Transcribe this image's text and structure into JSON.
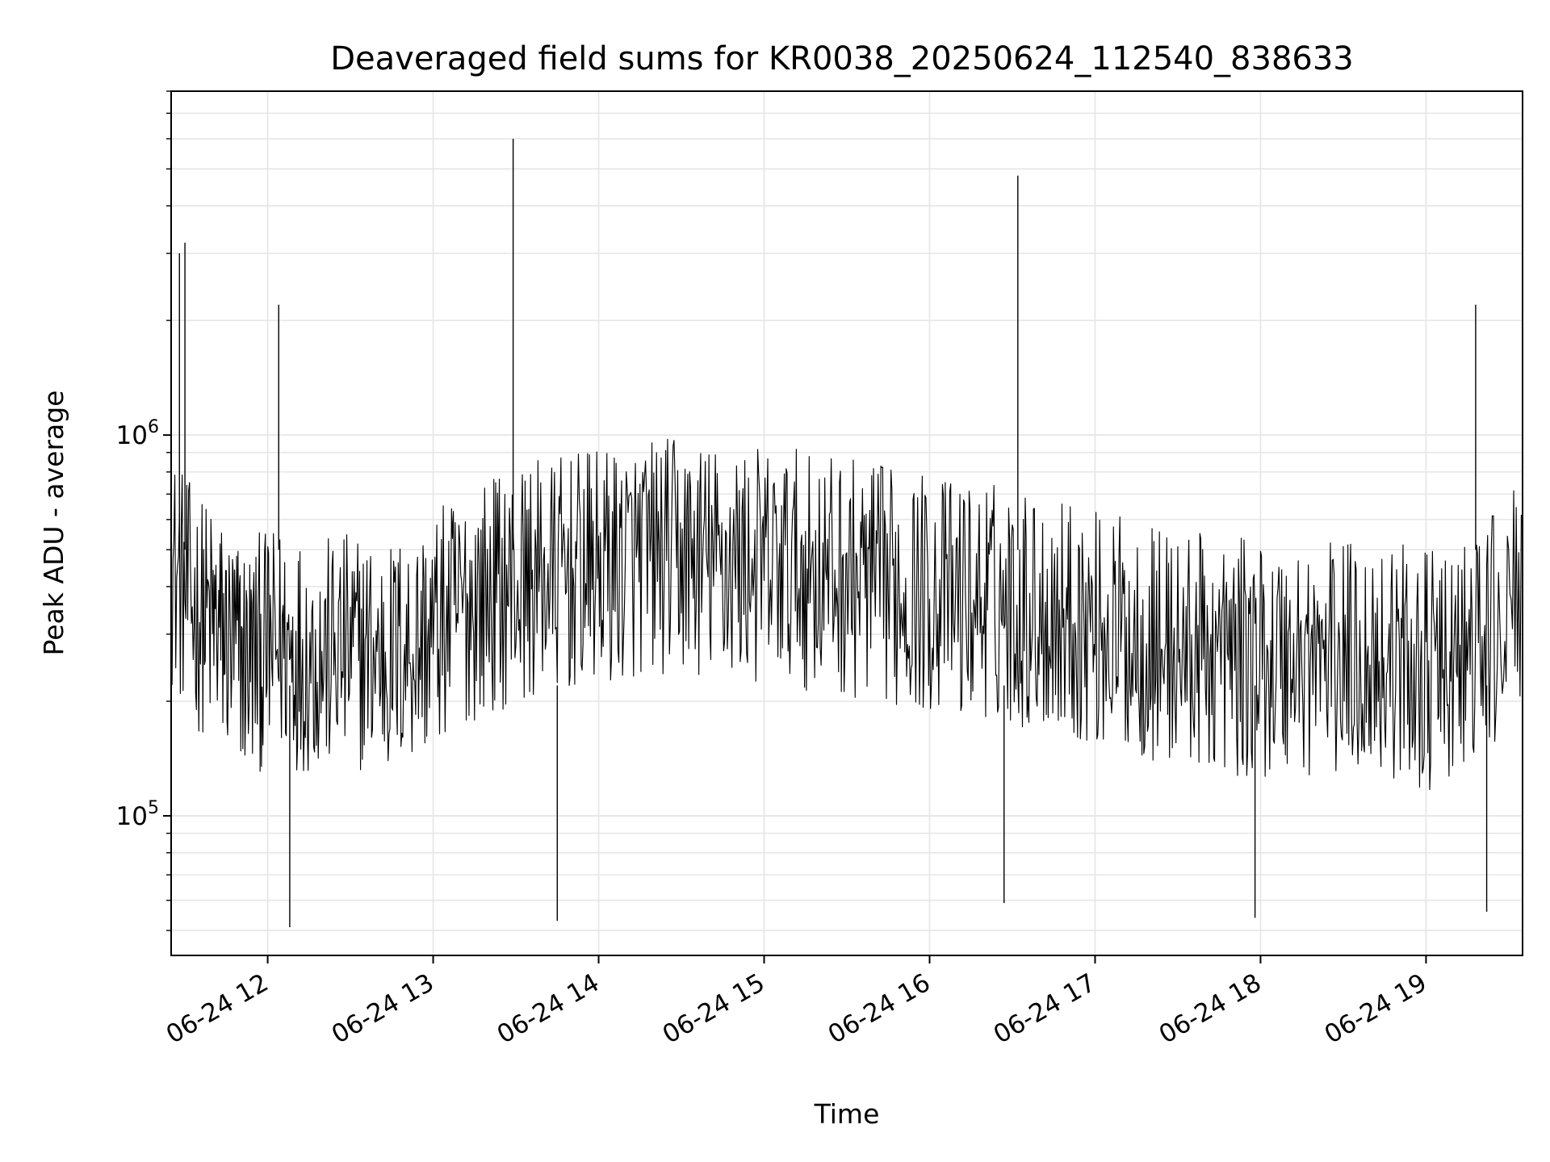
{
  "chart_data": {
    "type": "line",
    "title": "Deaveraged field sums for KR0038_20250624_112540_838633",
    "xlabel": "Time",
    "ylabel": "Peak ADU - average",
    "y_scale": "log",
    "ylim": [
      43000,
      8000000
    ],
    "xlim": [
      "2025-06-24 11:25",
      "2025-06-24 19:35"
    ],
    "grid": true,
    "grid_color": "#e6e6e6",
    "line_color": "#000000",
    "x_ticks": [
      {
        "time": "2025-06-24 12:00",
        "label": "06-24 12"
      },
      {
        "time": "2025-06-24 13:00",
        "label": "06-24 13"
      },
      {
        "time": "2025-06-24 14:00",
        "label": "06-24 14"
      },
      {
        "time": "2025-06-24 15:00",
        "label": "06-24 15"
      },
      {
        "time": "2025-06-24 16:00",
        "label": "06-24 16"
      },
      {
        "time": "2025-06-24 17:00",
        "label": "06-24 17"
      },
      {
        "time": "2025-06-24 18:00",
        "label": "06-24 18"
      },
      {
        "time": "2025-06-24 19:00",
        "label": "06-24 19"
      }
    ],
    "y_ticks": [
      {
        "value": 100000,
        "base": "10",
        "exp": "5"
      },
      {
        "value": 1000000,
        "base": "10",
        "exp": "6"
      }
    ],
    "series": [
      {
        "x": [
          "2025-06-24 11:25",
          "2025-06-24 11:33",
          "2025-06-24 11:40",
          "2025-06-24 11:46",
          "2025-06-24 11:52",
          "2025-06-24 11:58",
          "2025-06-24 12:05",
          "2025-06-24 12:12",
          "2025-06-24 12:20",
          "2025-06-24 12:28",
          "2025-06-24 12:36",
          "2025-06-24 12:44",
          "2025-06-24 12:52",
          "2025-06-24 13:00",
          "2025-06-24 13:08",
          "2025-06-24 13:16",
          "2025-06-24 13:24",
          "2025-06-24 13:32",
          "2025-06-24 13:40",
          "2025-06-24 13:48",
          "2025-06-24 13:56",
          "2025-06-24 14:04",
          "2025-06-24 14:12",
          "2025-06-24 14:20",
          "2025-06-24 14:28",
          "2025-06-24 14:36",
          "2025-06-24 14:44",
          "2025-06-24 14:52",
          "2025-06-24 15:00",
          "2025-06-24 15:08",
          "2025-06-24 15:16",
          "2025-06-24 15:24",
          "2025-06-24 15:32",
          "2025-06-24 15:40",
          "2025-06-24 15:48",
          "2025-06-24 15:56",
          "2025-06-24 16:04",
          "2025-06-24 16:12",
          "2025-06-24 16:20",
          "2025-06-24 16:28",
          "2025-06-24 16:36",
          "2025-06-24 16:44",
          "2025-06-24 16:52",
          "2025-06-24 17:00",
          "2025-06-24 17:08",
          "2025-06-24 17:16",
          "2025-06-24 17:24",
          "2025-06-24 17:32",
          "2025-06-24 17:40",
          "2025-06-24 17:48",
          "2025-06-24 17:56",
          "2025-06-24 18:04",
          "2025-06-24 18:12",
          "2025-06-24 18:20",
          "2025-06-24 18:28",
          "2025-06-24 18:36",
          "2025-06-24 18:44",
          "2025-06-24 18:52",
          "2025-06-24 19:00",
          "2025-06-24 19:08",
          "2025-06-24 19:16",
          "2025-06-24 19:24",
          "2025-06-24 19:35"
        ],
        "y": [
          450000,
          350000,
          320000,
          280000,
          260000,
          270000,
          280000,
          270000,
          260000,
          270000,
          270000,
          260000,
          280000,
          300000,
          340000,
          370000,
          390000,
          410000,
          420000,
          430000,
          440000,
          450000,
          470000,
          480000,
          480000,
          470000,
          460000,
          460000,
          450000,
          450000,
          440000,
          430000,
          420000,
          410000,
          400000,
          390000,
          380000,
          370000,
          370000,
          360000,
          350000,
          340000,
          330000,
          310000,
          300000,
          290000,
          280000,
          270000,
          270000,
          260000,
          260000,
          260000,
          260000,
          260000,
          260000,
          260000,
          260000,
          250000,
          240000,
          240000,
          260000,
          300000,
          380000
        ],
        "spikes": [
          {
            "x": "2025-06-24 11:28",
            "y": 3000000
          },
          {
            "x": "2025-06-24 11:30",
            "y": 3200000
          },
          {
            "x": "2025-06-24 12:04",
            "y": 2200000
          },
          {
            "x": "2025-06-24 13:29",
            "y": 6000000
          },
          {
            "x": "2025-06-24 16:32",
            "y": 4800000
          },
          {
            "x": "2025-06-24 19:18",
            "y": 2200000
          }
        ],
        "dips": [
          {
            "x": "2025-06-24 12:08",
            "y": 51000
          },
          {
            "x": "2025-06-24 13:45",
            "y": 53000
          },
          {
            "x": "2025-06-24 16:27",
            "y": 59000
          },
          {
            "x": "2025-06-24 17:58",
            "y": 54000
          },
          {
            "x": "2025-06-24 19:22",
            "y": 56000
          }
        ]
      }
    ]
  }
}
